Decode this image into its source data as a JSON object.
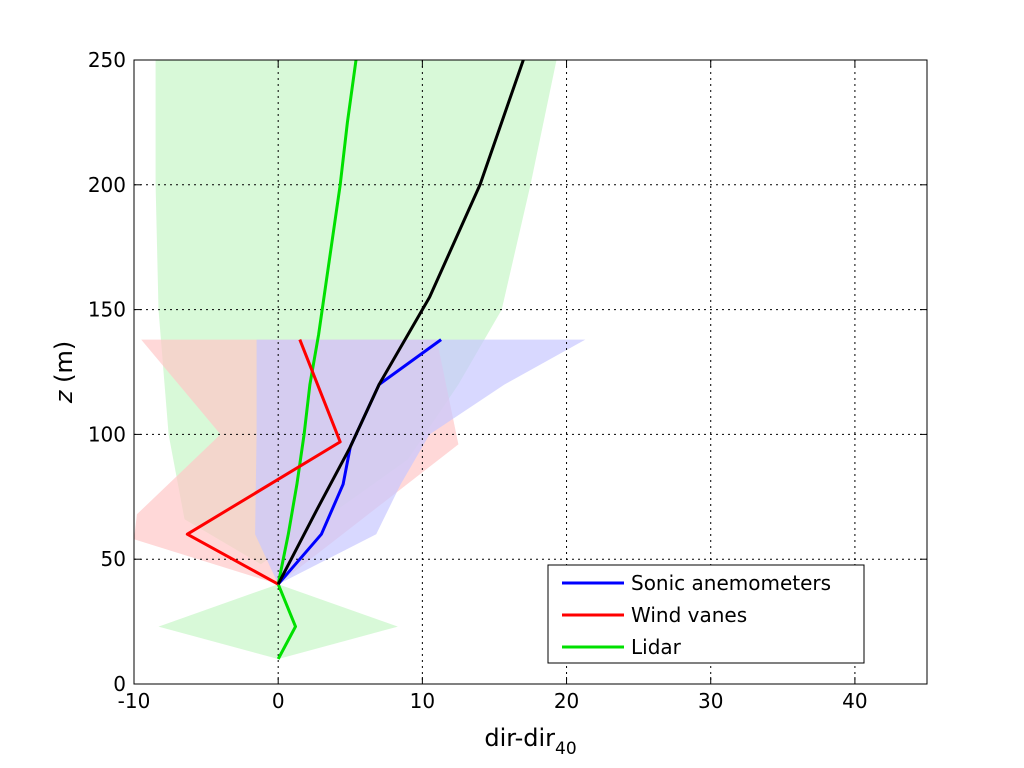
{
  "chart_data": {
    "type": "line",
    "title": "",
    "xlabel_main": "dir-dir",
    "xlabel_sub": "40",
    "ylabel_var": "z",
    "ylabel_unit": "(m)",
    "xlim": [
      -10,
      45
    ],
    "ylim": [
      0,
      250
    ],
    "xticks": [
      -10,
      0,
      10,
      20,
      30,
      40
    ],
    "yticks": [
      0,
      50,
      100,
      150,
      200,
      250
    ],
    "grid": true,
    "legend_position": "lower-right",
    "series": [
      {
        "name": "Sonic anemometers",
        "color": "#0000ff",
        "points": [
          [
            0,
            40
          ],
          [
            3,
            60
          ],
          [
            4.5,
            80
          ],
          [
            5,
            95
          ],
          [
            7,
            120
          ],
          [
            11.3,
            138
          ]
        ],
        "band": [
          [
            0,
            40
          ],
          [
            6.8,
            60
          ],
          [
            8.5,
            80
          ],
          [
            10.5,
            100
          ],
          [
            15.7,
            120
          ],
          [
            21.3,
            138
          ],
          [
            -1.5,
            138
          ],
          [
            -1.5,
            120
          ],
          [
            -1.5,
            100
          ],
          [
            -1.6,
            60
          ],
          [
            0,
            40
          ]
        ],
        "band_color": "#c7c7ff"
      },
      {
        "name": "Wind vanes",
        "color": "#ff0000",
        "points": [
          [
            0,
            40
          ],
          [
            -6.3,
            60
          ],
          [
            4.3,
            97
          ],
          [
            1.5,
            138
          ]
        ],
        "band": [
          [
            0,
            40
          ],
          [
            -10,
            58
          ],
          [
            -9.8,
            68
          ],
          [
            -4.0,
            100
          ],
          [
            -9.5,
            138
          ],
          [
            11.0,
            138
          ],
          [
            12.5,
            96
          ],
          [
            0,
            40
          ]
        ],
        "band_color": "#ffc8c8"
      },
      {
        "name": "Lidar",
        "color": "#00e000",
        "points": [
          [
            0,
            10
          ],
          [
            1.2,
            23
          ],
          [
            0,
            40
          ],
          [
            0.7,
            60
          ],
          [
            1.3,
            80
          ],
          [
            1.8,
            100
          ],
          [
            2.2,
            120
          ],
          [
            2.8,
            140
          ],
          [
            3.3,
            160
          ],
          [
            3.8,
            180
          ],
          [
            4.3,
            200
          ],
          [
            4.8,
            225
          ],
          [
            5.4,
            250
          ]
        ],
        "band": [
          [
            0,
            10
          ],
          [
            8.3,
            23
          ],
          [
            0,
            40
          ],
          [
            -8.3,
            23
          ],
          [
            0,
            10
          ]
        ],
        "band2": [
          [
            -8.5,
            250
          ],
          [
            19.3,
            250
          ],
          [
            17.5,
            200
          ],
          [
            15.5,
            150
          ],
          [
            12.5,
            120
          ],
          [
            9,
            90
          ],
          [
            0.5,
            55
          ],
          [
            -1.2,
            48
          ],
          [
            -6.5,
            66
          ],
          [
            -7.6,
            100
          ],
          [
            -8.3,
            150
          ],
          [
            -8.5,
            200
          ]
        ],
        "band_color": "#c8f7c8"
      },
      {
        "name": "",
        "color": "#000000",
        "points": [
          [
            0,
            40
          ],
          [
            2.7,
            70
          ],
          [
            5,
            95
          ],
          [
            7,
            120
          ],
          [
            10.5,
            155
          ],
          [
            14,
            200
          ],
          [
            17,
            250
          ]
        ]
      }
    ]
  }
}
